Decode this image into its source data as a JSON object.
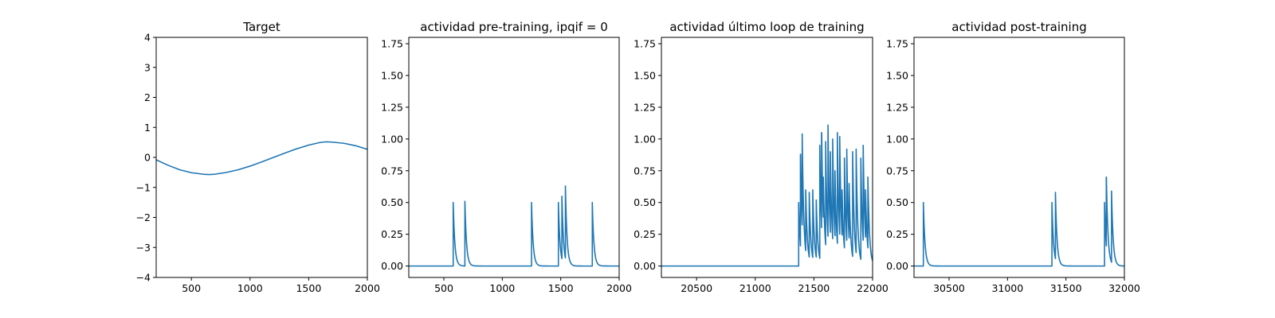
{
  "chart_data": [
    {
      "type": "line",
      "title": "Target",
      "xlabel": "",
      "ylabel": "",
      "xlim": [
        200,
        2000
      ],
      "ylim": [
        -4,
        4
      ],
      "xticks": [
        500,
        1000,
        1500,
        2000
      ],
      "yticks": [
        -4,
        -3,
        -2,
        -1,
        0,
        1,
        2,
        3,
        4
      ],
      "series_color": "#1f77b4",
      "series": [
        {
          "x": [
            200,
            300,
            400,
            500,
            600,
            650,
            700,
            800,
            900,
            1000,
            1100,
            1200,
            1300,
            1400,
            1500,
            1600,
            1650,
            1700,
            1800,
            1900,
            2000
          ],
          "y": [
            -0.08,
            -0.26,
            -0.41,
            -0.51,
            -0.56,
            -0.57,
            -0.56,
            -0.5,
            -0.41,
            -0.29,
            -0.15,
            0.0,
            0.15,
            0.29,
            0.41,
            0.5,
            0.52,
            0.51,
            0.47,
            0.39,
            0.27
          ]
        }
      ]
    },
    {
      "type": "line",
      "title": "actividad pre-training, ipqif = 0",
      "xlabel": "",
      "ylabel": "",
      "xlim": [
        200,
        2000
      ],
      "ylim": [
        -0.09,
        1.8
      ],
      "xticks": [
        500,
        1000,
        1500,
        2000
      ],
      "yticks": [
        0.0,
        0.25,
        0.5,
        0.75,
        1.0,
        1.25,
        1.5,
        1.75
      ],
      "ytick_format": 2,
      "series_color": "#1f77b4",
      "spikes": [
        {
          "t": 580,
          "a": 0.5
        },
        {
          "t": 680,
          "a": 0.51
        },
        {
          "t": 1250,
          "a": 0.5
        },
        {
          "t": 1480,
          "a": 0.5
        },
        {
          "t": 1510,
          "a": 0.55
        },
        {
          "t": 1540,
          "a": 0.63
        },
        {
          "t": 1770,
          "a": 0.5
        }
      ],
      "decay": 14
    },
    {
      "type": "line",
      "title": "actividad último loop de training",
      "xlabel": "",
      "ylabel": "",
      "xlim": [
        20200,
        22000
      ],
      "ylim": [
        -0.09,
        1.8
      ],
      "xticks": [
        20500,
        21000,
        21500,
        22000
      ],
      "yticks": [
        0.0,
        0.25,
        0.5,
        0.75,
        1.0,
        1.25,
        1.5,
        1.75
      ],
      "ytick_format": 2,
      "series_color": "#1f77b4",
      "spikes": [
        {
          "t": 21370,
          "a": 0.5
        },
        {
          "t": 21385,
          "a": 0.88
        },
        {
          "t": 21400,
          "a": 1.04
        },
        {
          "t": 21430,
          "a": 0.6
        },
        {
          "t": 21460,
          "a": 0.58
        },
        {
          "t": 21490,
          "a": 0.6
        },
        {
          "t": 21520,
          "a": 0.52
        },
        {
          "t": 21550,
          "a": 0.95
        },
        {
          "t": 21565,
          "a": 1.05
        },
        {
          "t": 21580,
          "a": 0.7
        },
        {
          "t": 21600,
          "a": 0.98
        },
        {
          "t": 21620,
          "a": 1.11
        },
        {
          "t": 21640,
          "a": 0.9
        },
        {
          "t": 21660,
          "a": 1.0
        },
        {
          "t": 21680,
          "a": 0.75
        },
        {
          "t": 21700,
          "a": 1.05
        },
        {
          "t": 21720,
          "a": 1.02
        },
        {
          "t": 21740,
          "a": 0.6
        },
        {
          "t": 21760,
          "a": 0.85
        },
        {
          "t": 21780,
          "a": 0.92
        },
        {
          "t": 21800,
          "a": 0.65
        },
        {
          "t": 21830,
          "a": 0.9
        },
        {
          "t": 21860,
          "a": 0.92
        },
        {
          "t": 21900,
          "a": 0.85
        },
        {
          "t": 21920,
          "a": 0.95
        },
        {
          "t": 21940,
          "a": 0.6
        },
        {
          "t": 21960,
          "a": 0.7
        }
      ],
      "decay": 14
    },
    {
      "type": "line",
      "title": "actividad post-training",
      "xlabel": "",
      "ylabel": "",
      "xlim": [
        30200,
        32000
      ],
      "ylim": [
        -0.09,
        1.8
      ],
      "xticks": [
        30500,
        31000,
        31500,
        32000
      ],
      "yticks": [
        0.0,
        0.25,
        0.5,
        0.75,
        1.0,
        1.25,
        1.5,
        1.75
      ],
      "ytick_format": 2,
      "series_color": "#1f77b4",
      "spikes": [
        {
          "t": 30280,
          "a": 0.5
        },
        {
          "t": 31380,
          "a": 0.5
        },
        {
          "t": 31410,
          "a": 0.58
        },
        {
          "t": 31830,
          "a": 0.5
        },
        {
          "t": 31845,
          "a": 0.7
        },
        {
          "t": 31890,
          "a": 0.59
        }
      ],
      "decay": 14
    }
  ]
}
